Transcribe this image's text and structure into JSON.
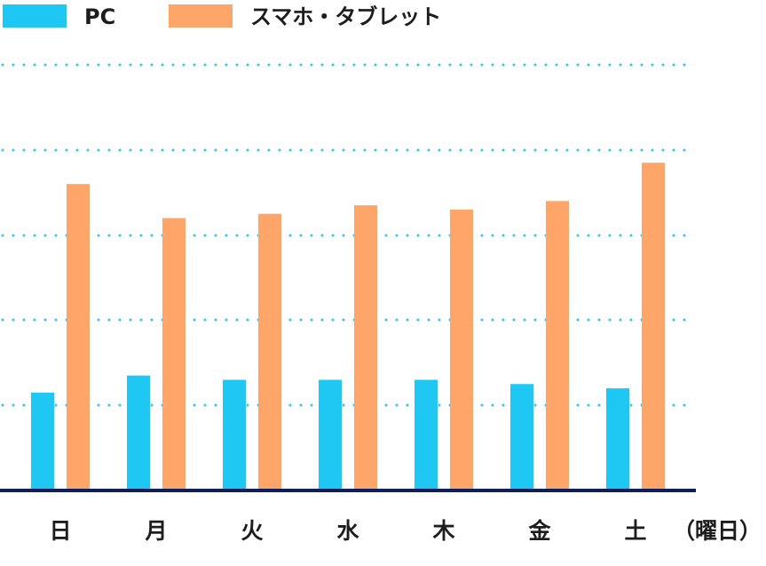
{
  "colors": {
    "pc": "#1ec8f3",
    "mobile": "#fea66a",
    "axis": "#0e1f5b",
    "grid": "#39c3ea",
    "text": "#1d1d1d"
  },
  "legend": {
    "items": [
      {
        "label": "PC",
        "color": "#1ec8f3"
      },
      {
        "label": "スマホ・タブレット",
        "color": "#fea66a"
      }
    ]
  },
  "chart_data": {
    "type": "bar",
    "categories": [
      "日",
      "月",
      "火",
      "水",
      "木",
      "金",
      "土"
    ],
    "xlabel": "（曜日）",
    "ylim": [
      0,
      100
    ],
    "y_gridlines": [
      20,
      40,
      60,
      80,
      100
    ],
    "grid": true,
    "legend_position": "top-left",
    "series": [
      {
        "name": "PC",
        "color": "#1ec8f3",
        "values": [
          23,
          27,
          26,
          26,
          26,
          25,
          24
        ]
      },
      {
        "name": "スマホ・タブレット",
        "color": "#fea66a",
        "values": [
          72,
          64,
          65,
          67,
          66,
          68,
          77
        ]
      }
    ]
  }
}
